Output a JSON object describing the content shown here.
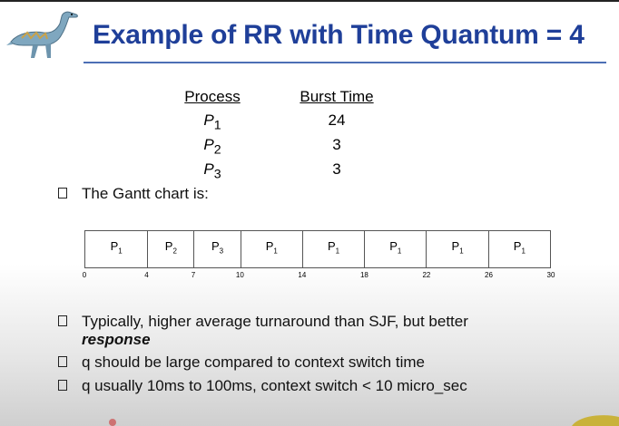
{
  "slide": {
    "title": "Example of RR with Time Quantum = 4"
  },
  "process_table": {
    "headers": {
      "process": "Process",
      "burst": "Burst Time"
    },
    "rows": [
      {
        "name": "P",
        "sub": "1",
        "burst": "24"
      },
      {
        "name": "P",
        "sub": "2",
        "burst": "3"
      },
      {
        "name": "P",
        "sub": "3",
        "burst": "3"
      }
    ]
  },
  "bullets": {
    "gantt_intro": "The Gantt chart is:",
    "b1_line1": "Typically, higher average turnaround than SJF, but better",
    "b1_line2": "response",
    "b2": "q should be large compared to context switch time",
    "b3": "q usually 10ms to 100ms, context switch < 10 micro_sec"
  },
  "gantt": {
    "segments": [
      {
        "name": "P",
        "sub": "1",
        "start": 0,
        "end": 4
      },
      {
        "name": "P",
        "sub": "2",
        "start": 4,
        "end": 7
      },
      {
        "name": "P",
        "sub": "3",
        "start": 7,
        "end": 10
      },
      {
        "name": "P",
        "sub": "1",
        "start": 10,
        "end": 14
      },
      {
        "name": "P",
        "sub": "1",
        "start": 14,
        "end": 18
      },
      {
        "name": "P",
        "sub": "1",
        "start": 18,
        "end": 22
      },
      {
        "name": "P",
        "sub": "1",
        "start": 22,
        "end": 26
      },
      {
        "name": "P",
        "sub": "1",
        "start": 26,
        "end": 30
      }
    ],
    "ticks": [
      "0",
      "4",
      "7",
      "10",
      "14",
      "18",
      "22",
      "26",
      "30"
    ]
  },
  "colors": {
    "title": "#1f3f99",
    "rule": "#4d6fb5"
  },
  "icons": {
    "logo": "dinosaur-icon",
    "bullet": "square-bullet-icon"
  }
}
